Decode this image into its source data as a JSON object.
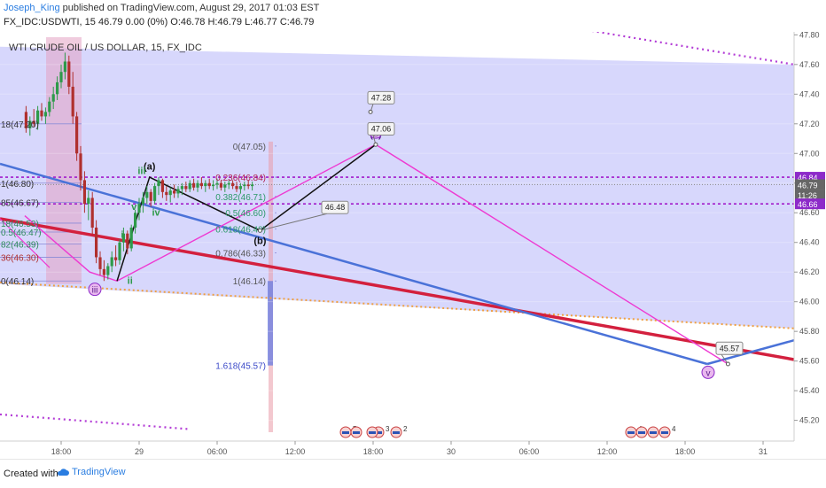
{
  "header": {
    "author": "Joseph_King",
    "published_text": "published on TradingView.com, August 29, 2017 01:03 EST",
    "symbol_line": "FX_IDC:USDWTI, 15  46.79 0.00 (0%)  O:46.78 H:46.79 L:46.77 C:46.79"
  },
  "chart_title": "WTI CRUDE OIL / US DOLLAR, 15, FX_IDC",
  "footer": {
    "created_with": "Created with",
    "brand": "TradingView"
  },
  "colors": {
    "background": "#ffffff",
    "channel_fill": "#c9c9fb",
    "red_trend": "#d3203e",
    "blue_trend": "#4a72d8",
    "magenta": "#ee3ad2",
    "dotted_purple": "#b33cd6",
    "orange_dots": "#f0a040",
    "up_candle": "#2e9a4a",
    "down_candle": "#b0302e",
    "price_tag": "#666666",
    "purple_tag": "#8d2ac9"
  },
  "chart_data": {
    "type": "candlestick",
    "symbol": "FX_IDC:USDWTI",
    "interval": "15",
    "ylim": [
      45.12,
      47.82
    ],
    "y_ticks": [
      45.2,
      45.4,
      45.6,
      45.8,
      46.0,
      46.2,
      46.4,
      46.6,
      46.8,
      47.0,
      47.2,
      47.4,
      47.6,
      47.8
    ],
    "y_tick_labels": [
      "45.20",
      "45.40",
      "45.60",
      "45.80",
      "46.00",
      "46.20",
      "46.40",
      "46.60",
      "46.80",
      "47.00",
      "47.20",
      "47.40",
      "47.60",
      "47.80"
    ],
    "x_ticks": [
      {
        "hour": 18,
        "label": "18:00"
      },
      {
        "hour": 24,
        "label": "29"
      },
      {
        "hour": 30,
        "label": "06:00"
      },
      {
        "hour": 36,
        "label": "12:00"
      },
      {
        "hour": 42,
        "label": "18:00"
      },
      {
        "hour": 48,
        "label": "30"
      },
      {
        "hour": 54,
        "label": "06:00"
      },
      {
        "hour": 60,
        "label": "12:00"
      },
      {
        "hour": 66,
        "label": "18:00"
      },
      {
        "hour": 72,
        "label": "31"
      }
    ],
    "x_axis_note": "hours from Aug 28 00:00",
    "candles": [
      [
        15.3,
        47.28,
        47.32,
        47.14,
        47.17
      ],
      [
        15.6,
        47.17,
        47.25,
        47.12,
        47.22
      ],
      [
        15.9,
        47.22,
        47.3,
        47.18,
        47.2
      ],
      [
        16.2,
        47.2,
        47.32,
        47.16,
        47.29
      ],
      [
        16.5,
        47.29,
        47.34,
        47.22,
        47.25
      ],
      [
        16.8,
        47.25,
        47.31,
        47.2,
        47.28
      ],
      [
        17.1,
        47.28,
        47.38,
        47.25,
        47.35
      ],
      [
        17.4,
        47.35,
        47.45,
        47.3,
        47.4
      ],
      [
        17.7,
        47.4,
        47.52,
        47.36,
        47.48
      ],
      [
        18.0,
        47.48,
        47.6,
        47.44,
        47.55
      ],
      [
        18.3,
        47.55,
        47.68,
        47.5,
        47.62
      ],
      [
        18.6,
        47.62,
        47.66,
        47.4,
        47.45
      ],
      [
        18.9,
        47.45,
        47.55,
        47.2,
        47.25
      ],
      [
        19.2,
        47.25,
        47.28,
        46.95,
        47.0
      ],
      [
        19.5,
        47.0,
        47.05,
        46.75,
        46.82
      ],
      [
        19.8,
        46.82,
        46.88,
        46.6,
        46.66
      ],
      [
        20.1,
        46.66,
        46.75,
        46.55,
        46.7
      ],
      [
        20.4,
        46.7,
        46.74,
        46.45,
        46.5
      ],
      [
        20.7,
        46.5,
        46.55,
        46.26,
        46.3
      ],
      [
        21.0,
        46.3,
        46.34,
        46.18,
        46.22
      ],
      [
        21.3,
        46.22,
        46.28,
        46.14,
        46.18
      ],
      [
        21.6,
        46.18,
        46.26,
        46.15,
        46.24
      ],
      [
        21.9,
        46.24,
        46.34,
        46.2,
        46.3
      ],
      [
        22.2,
        46.3,
        46.38,
        46.24,
        46.28
      ],
      [
        22.5,
        46.28,
        46.42,
        46.25,
        46.4
      ],
      [
        22.8,
        46.4,
        46.5,
        46.34,
        46.46
      ],
      [
        23.1,
        46.46,
        46.48,
        46.32,
        46.36
      ],
      [
        23.4,
        46.36,
        46.52,
        46.34,
        46.5
      ],
      [
        23.7,
        46.5,
        46.62,
        46.46,
        46.6
      ],
      [
        24.0,
        46.6,
        46.7,
        46.55,
        46.66
      ],
      [
        24.3,
        46.66,
        46.74,
        46.6,
        46.7
      ],
      [
        24.6,
        46.7,
        46.78,
        46.66,
        46.74
      ],
      [
        24.9,
        46.74,
        46.76,
        46.64,
        46.68
      ],
      [
        25.2,
        46.68,
        46.8,
        46.66,
        46.78
      ],
      [
        25.5,
        46.78,
        46.84,
        46.72,
        46.82
      ],
      [
        25.8,
        46.82,
        46.83,
        46.7,
        46.74
      ],
      [
        26.1,
        46.74,
        46.78,
        46.68,
        46.72
      ],
      [
        26.4,
        46.72,
        46.77,
        46.67,
        46.75
      ],
      [
        26.7,
        46.75,
        46.79,
        46.7,
        46.73
      ],
      [
        27.0,
        46.73,
        46.78,
        46.7,
        46.76
      ],
      [
        27.3,
        46.76,
        46.8,
        46.72,
        46.78
      ],
      [
        27.6,
        46.78,
        46.81,
        46.74,
        46.76
      ],
      [
        27.9,
        46.76,
        46.82,
        46.74,
        46.8
      ],
      [
        28.2,
        46.8,
        46.83,
        46.75,
        46.77
      ],
      [
        28.5,
        46.77,
        46.82,
        46.74,
        46.8
      ],
      [
        28.8,
        46.8,
        46.84,
        46.76,
        46.78
      ],
      [
        29.1,
        46.78,
        46.82,
        46.74,
        46.8
      ],
      [
        29.4,
        46.8,
        46.83,
        46.76,
        46.78
      ],
      [
        29.7,
        46.78,
        46.82,
        46.75,
        46.79
      ],
      [
        30.0,
        46.79,
        46.83,
        46.76,
        46.8
      ],
      [
        30.3,
        46.8,
        46.82,
        46.75,
        46.77
      ],
      [
        30.6,
        46.77,
        46.81,
        46.74,
        46.79
      ],
      [
        30.9,
        46.79,
        46.82,
        46.76,
        46.8
      ],
      [
        31.2,
        46.8,
        46.82,
        46.76,
        46.78
      ],
      [
        31.5,
        46.78,
        46.81,
        46.74,
        46.76
      ],
      [
        31.8,
        46.76,
        46.8,
        46.73,
        46.78
      ],
      [
        32.1,
        46.78,
        46.81,
        46.75,
        46.79
      ],
      [
        32.4,
        46.79,
        46.82,
        46.76,
        46.78
      ],
      [
        32.7,
        46.78,
        46.81,
        46.75,
        46.79
      ]
    ],
    "levels": [
      {
        "value": 46.84,
        "label": "46.84",
        "style": "dotted-magenta"
      },
      {
        "value": 46.66,
        "label": "46.66",
        "style": "dotted-magenta"
      },
      {
        "value": 46.79,
        "label": "46.79",
        "style": "current-price"
      }
    ],
    "right_tags": [
      {
        "value": 46.84,
        "label": "46.84",
        "color": "#8d2ac9"
      },
      {
        "value": 46.79,
        "label": "46.79",
        "color": "#666666"
      },
      {
        "value": 46.72,
        "label": "11:26",
        "color": "#666666"
      },
      {
        "value": 46.66,
        "label": "46.66",
        "color": "#8d2ac9"
      }
    ],
    "fib_left": [
      {
        "value": 47.2,
        "label": "18(47.20)"
      },
      {
        "value": 46.8,
        "label": "1(46.80)"
      },
      {
        "value": 46.67,
        "label": "85(46.67)"
      },
      {
        "value": 46.53,
        "label": "18(46.53)"
      },
      {
        "value": 46.47,
        "label": "0.5(46.47)"
      },
      {
        "value": 46.39,
        "label": "82(46.39)"
      },
      {
        "value": 46.3,
        "label": "36(46.30)"
      },
      {
        "value": 46.14,
        "label": "0(46.14)"
      }
    ],
    "fib_mid": [
      {
        "value": 47.05,
        "label": "0(47.05)"
      },
      {
        "value": 46.84,
        "label": "0.236(46.84)"
      },
      {
        "value": 46.71,
        "label": "0.382(46.71)"
      },
      {
        "value": 46.6,
        "label": "0.5(46.60)"
      },
      {
        "value": 46.49,
        "label": "0.618(46.49)"
      },
      {
        "value": 46.33,
        "label": "0.786(46.33)"
      },
      {
        "value": 46.14,
        "label": "1(46.14)"
      },
      {
        "value": 45.57,
        "label": "1.618(45.57)"
      }
    ],
    "callouts": [
      {
        "value": 47.28,
        "label": "47.28"
      },
      {
        "value": 47.06,
        "label": "47.06"
      },
      {
        "value": 46.48,
        "label": "46.48"
      },
      {
        "value": 45.57,
        "label": "45.57"
      }
    ],
    "wave_labels": [
      "(a)",
      "(b)",
      "(c)",
      "iii",
      "iv",
      "ii",
      "i",
      "v",
      "iii"
    ],
    "event_markers": [
      "5",
      "3",
      "2",
      "4",
      "4"
    ]
  }
}
